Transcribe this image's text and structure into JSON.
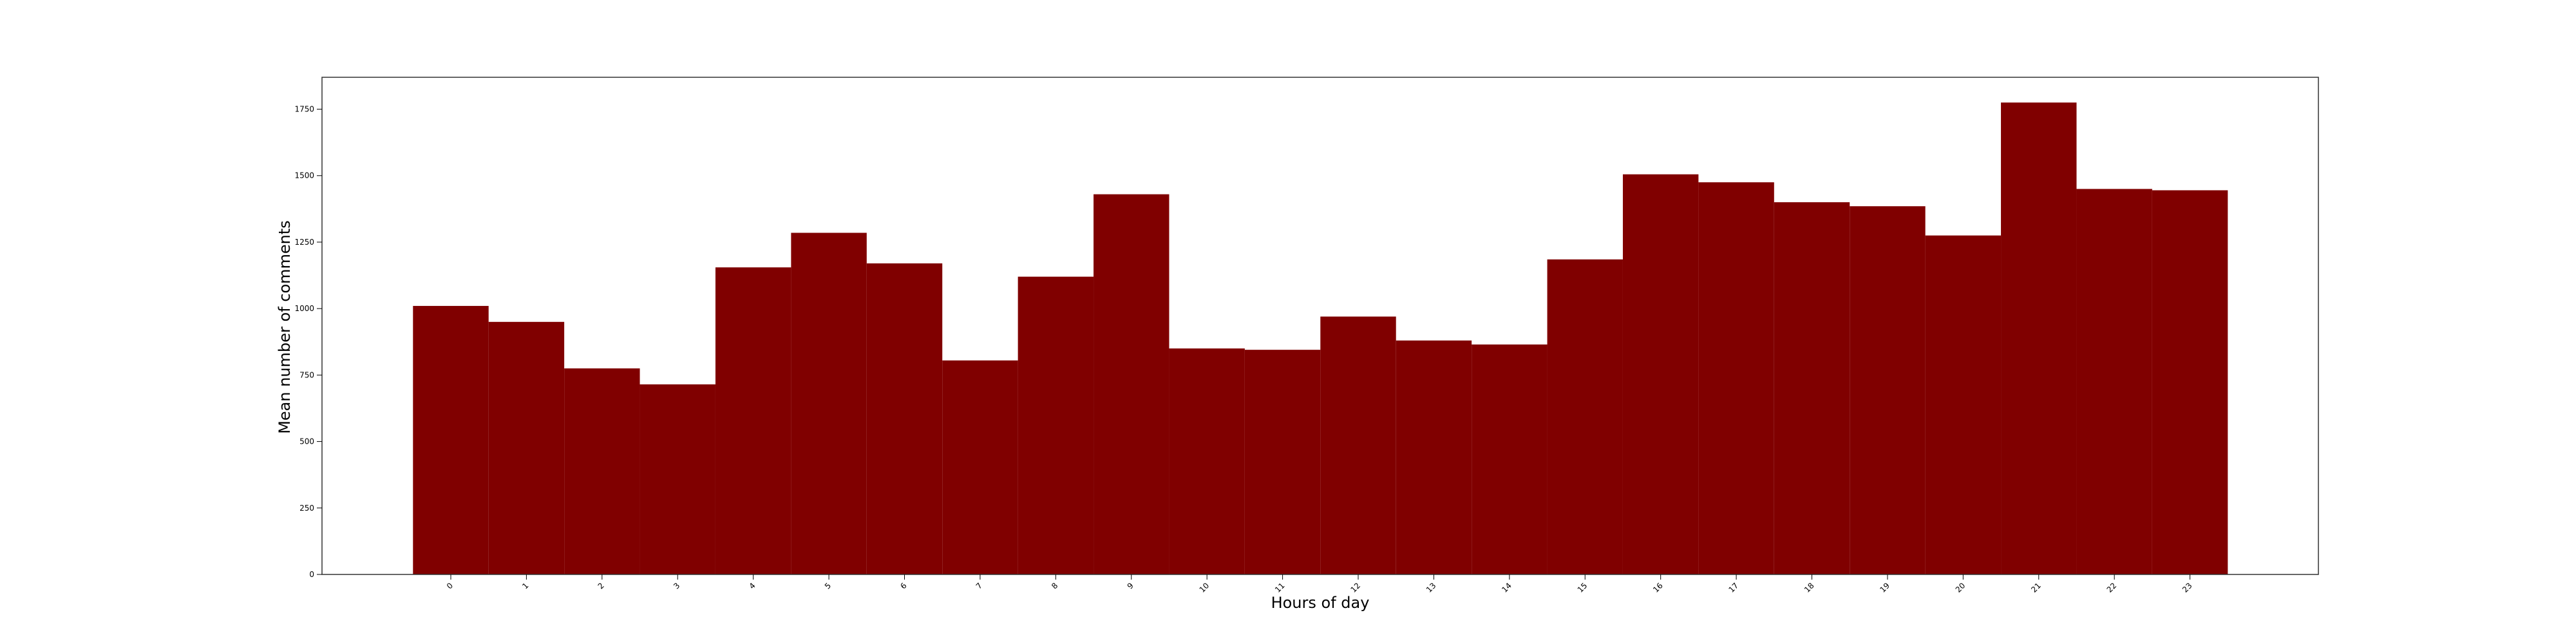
{
  "chart_data": {
    "type": "bar",
    "title": "",
    "xlabel": "Hours of day",
    "ylabel": "Mean number of comments",
    "categories": [
      "0",
      "1",
      "2",
      "3",
      "4",
      "5",
      "6",
      "7",
      "8",
      "9",
      "10",
      "11",
      "12",
      "13",
      "14",
      "15",
      "16",
      "17",
      "18",
      "19",
      "20",
      "21",
      "22",
      "23"
    ],
    "values": [
      1010,
      950,
      775,
      715,
      1155,
      1285,
      1170,
      805,
      1120,
      1430,
      850,
      845,
      970,
      880,
      865,
      1185,
      1505,
      1475,
      1400,
      1385,
      1275,
      1775,
      1450,
      1445
    ],
    "ylim": [
      0,
      1870
    ],
    "yticks": [
      0,
      250,
      500,
      750,
      1000,
      1250,
      1500,
      1750
    ],
    "bar_color": "#800000",
    "grid": false,
    "legend": "none"
  }
}
